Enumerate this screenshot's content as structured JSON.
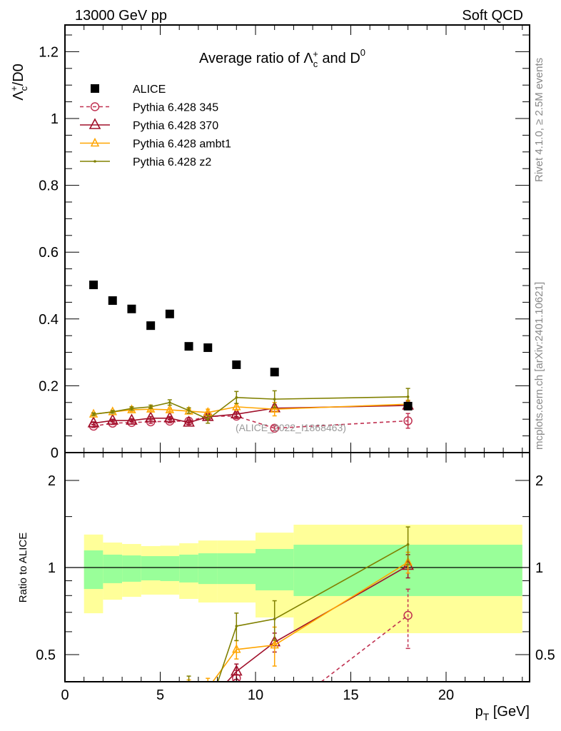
{
  "header": {
    "left": "13000 GeV pp",
    "right": "Soft QCD"
  },
  "side_text": {
    "rivet": "Rivet 4.1.0, ≥ 2.5M events",
    "mcplots": "mcplots.cern.ch [arXiv:2401.10621]"
  },
  "watermark": "(ALICE_2022_I1868463)",
  "colors": {
    "alice": "#000000",
    "p345": "#c03050",
    "p370": "#a0102a",
    "ambt1": "#ffa500",
    "z2": "#808000",
    "band_total": "#ffff99",
    "band_stat": "#99ff99"
  },
  "chart_data": {
    "type": "line",
    "title": {
      "pre": "Average ratio of ",
      "sym": "Λ",
      "sub": "c",
      "sup": "+",
      "mid": " and D",
      "sup2": "0"
    },
    "ylabel": {
      "sym": "Λ",
      "sub": "c",
      "sup": "+",
      "rest": "/D0"
    },
    "xlabel": {
      "p": "p",
      "sub": "T",
      "rest": " [GeV]"
    },
    "ratio_ylabel": "Ratio to ALICE",
    "xlim": [
      0,
      24.4
    ],
    "ylim": [
      0,
      1.28
    ],
    "ratio_ylim": [
      0.403,
      2.5
    ],
    "ratio_scale": "log",
    "x_ticks": [
      "0",
      "5",
      "10",
      "15",
      "20"
    ],
    "y_ticks": [
      "0",
      "0.2",
      "0.4",
      "0.6",
      "0.8",
      "1",
      "1.2"
    ],
    "ratio_ticks": [
      "0.5",
      "1",
      "2"
    ],
    "bin_edges": [
      1,
      2,
      3,
      4,
      5,
      6,
      7,
      8,
      10,
      12,
      24
    ],
    "x": [
      1.5,
      2.5,
      3.5,
      4.5,
      5.5,
      6.5,
      7.5,
      9,
      11,
      18
    ],
    "ratio_band_total": {
      "upper": [
        1.3,
        1.22,
        1.206,
        1.186,
        1.19,
        1.213,
        1.24,
        1.24,
        1.32,
        1.406
      ],
      "lower": [
        0.695,
        0.774,
        0.792,
        0.806,
        0.806,
        0.779,
        0.757,
        0.757,
        0.672,
        0.593
      ]
    },
    "ratio_band_stat": {
      "upper": [
        1.146,
        1.108,
        1.101,
        1.095,
        1.095,
        1.108,
        1.12,
        1.12,
        1.159,
        1.199
      ],
      "lower": [
        0.843,
        0.883,
        0.893,
        0.903,
        0.898,
        0.888,
        0.877,
        0.877,
        0.834,
        0.797
      ]
    },
    "legend": {
      "placement": "top-left"
    },
    "series": [
      {
        "key": "alice",
        "name": "ALICE",
        "marker": "square",
        "dash": false,
        "values": [
          0.502,
          0.455,
          0.43,
          0.38,
          0.415,
          0.318,
          0.314,
          0.263,
          0.241,
          0.139
        ],
        "errors": [
          0,
          0,
          0,
          0,
          0,
          0,
          0,
          0,
          0,
          0
        ]
      },
      {
        "key": "p345",
        "name": "Pythia 6.428 345",
        "marker": "circle",
        "dash": true,
        "values": [
          0.079,
          0.088,
          0.09,
          0.092,
          0.094,
          0.094,
          0.109,
          0.109,
          0.073,
          0.095
        ],
        "errors": [
          0.004,
          0.004,
          0.004,
          0.005,
          0.005,
          0.005,
          0.006,
          0.007,
          0.007,
          0.022
        ]
      },
      {
        "key": "p370",
        "name": "Pythia 6.428 370",
        "marker": "triangle",
        "dash": false,
        "values": [
          0.088,
          0.096,
          0.096,
          0.103,
          0.103,
          0.09,
          0.107,
          0.115,
          0.133,
          0.141
        ],
        "errors": [
          0.004,
          0.004,
          0.004,
          0.005,
          0.005,
          0.005,
          0.006,
          0.007,
          0.01,
          0.013
        ]
      },
      {
        "key": "ambt1",
        "name": "Pythia 6.428 ambt1",
        "marker": "triangle-small",
        "dash": false,
        "values": [
          0.115,
          0.122,
          0.128,
          0.13,
          0.128,
          0.124,
          0.12,
          0.137,
          0.13,
          0.145
        ],
        "errors": [
          0.004,
          0.004,
          0.005,
          0.005,
          0.005,
          0.006,
          0.01,
          0.01,
          0.02,
          0.012
        ]
      },
      {
        "key": "z2",
        "name": "Pythia 6.428 z2",
        "marker": "dot",
        "dash": false,
        "values": [
          0.115,
          0.122,
          0.132,
          0.137,
          0.15,
          0.126,
          0.1,
          0.165,
          0.16,
          0.167
        ],
        "errors": [
          0.004,
          0.004,
          0.005,
          0.005,
          0.008,
          0.008,
          0.012,
          0.018,
          0.025,
          0.025
        ]
      }
    ]
  }
}
